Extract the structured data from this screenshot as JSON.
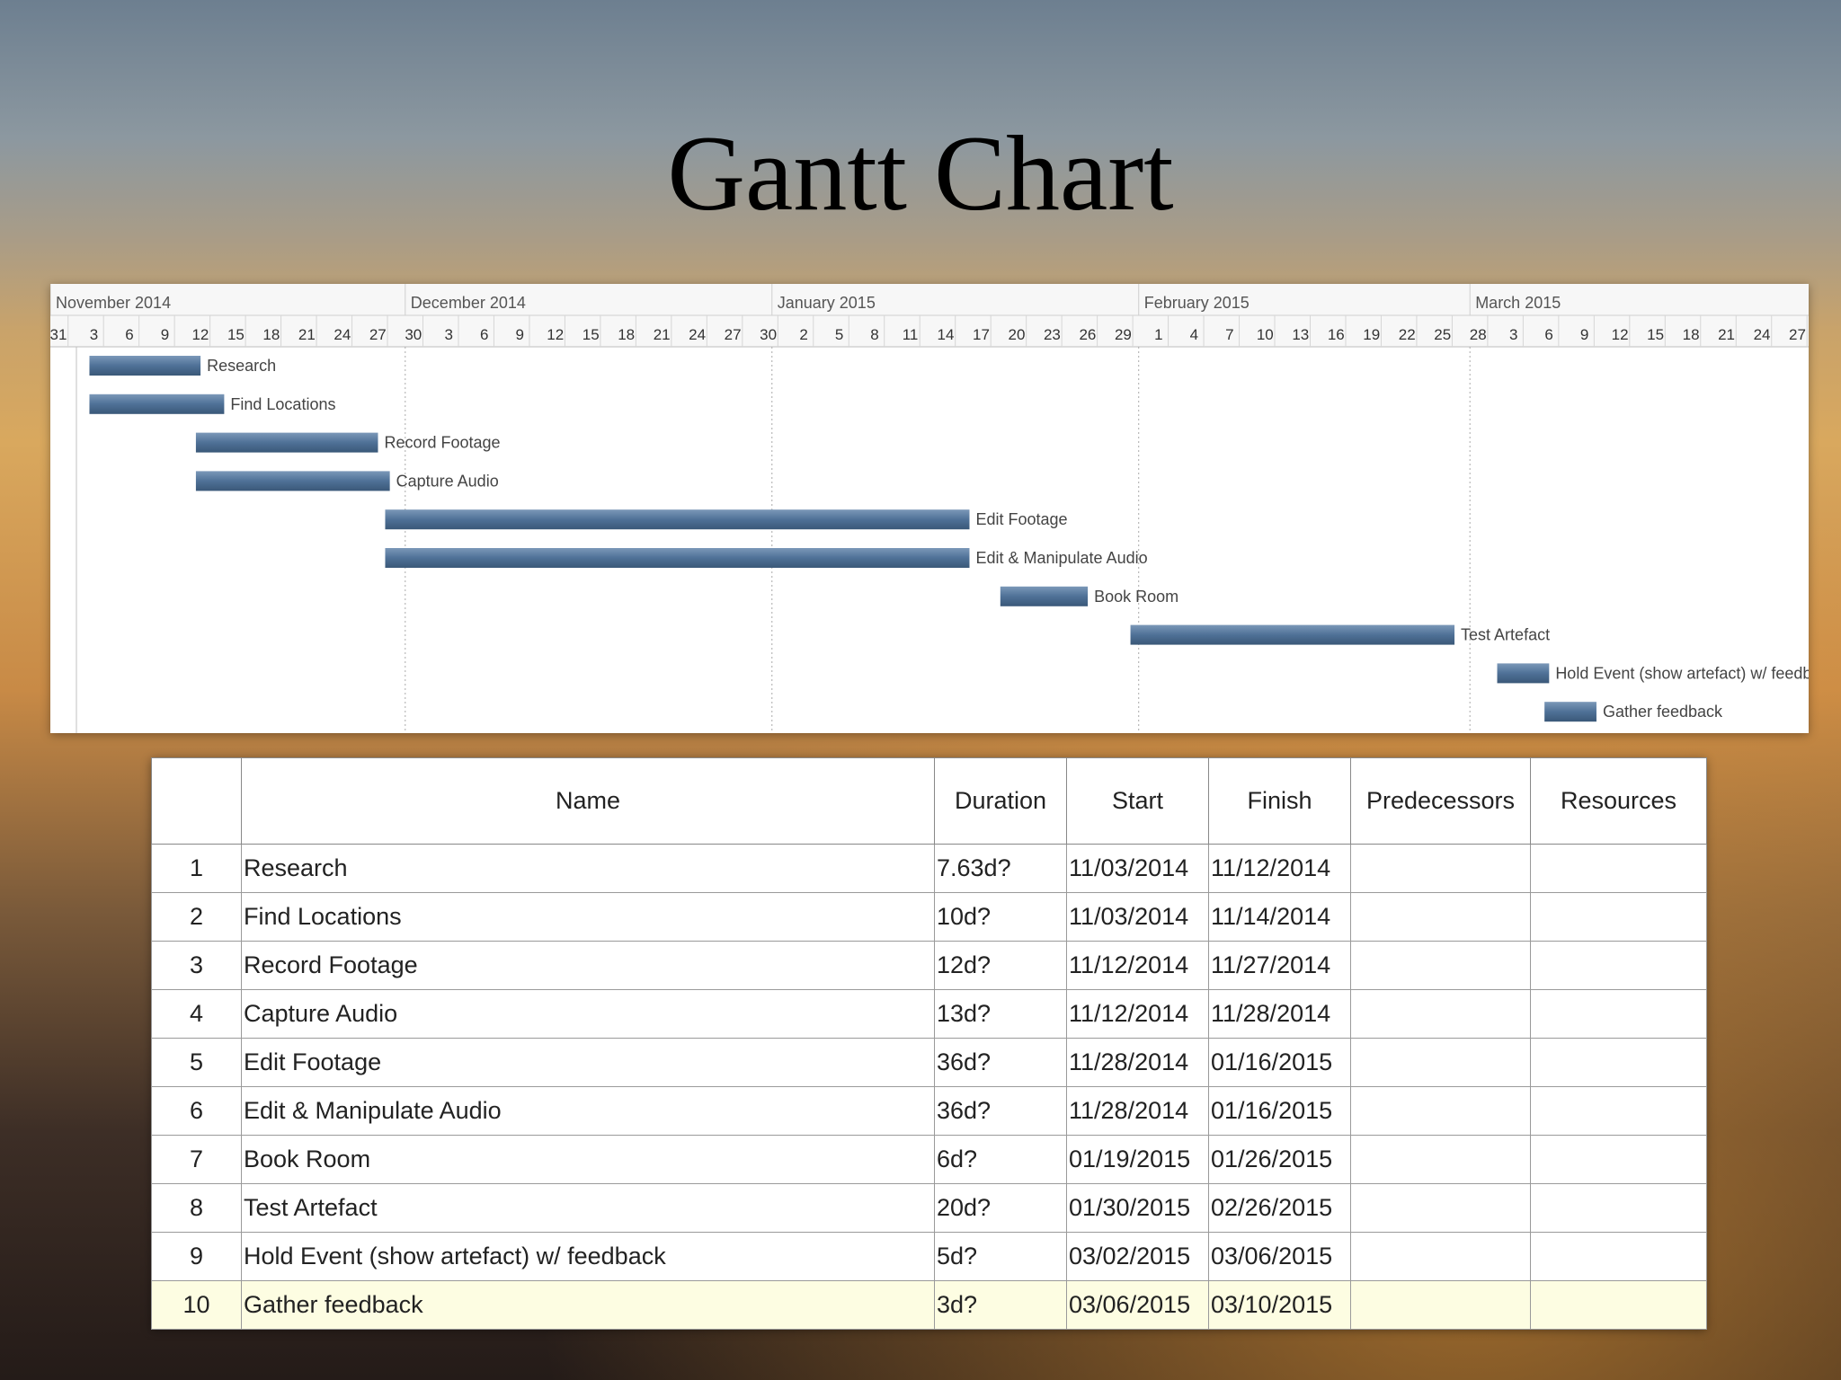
{
  "slide": {
    "title": "Gantt Chart"
  },
  "gantt": {
    "months": [
      {
        "label": "November 2014",
        "start": "2014-10-31"
      },
      {
        "label": "December 2014",
        "start": "2014-11-30"
      },
      {
        "label": "January 2015",
        "start": "2014-12-31"
      },
      {
        "label": "February 2015",
        "start": "2015-01-31"
      },
      {
        "label": "March 2015",
        "start": "2015-02-28"
      }
    ],
    "day_ticks": [
      "31",
      "3",
      "6",
      "9",
      "12",
      "15",
      "18",
      "21",
      "24",
      "27",
      "30",
      "3",
      "6",
      "9",
      "12",
      "15",
      "18",
      "21",
      "24",
      "27",
      "30",
      "2",
      "5",
      "8",
      "11",
      "14",
      "17",
      "20",
      "23",
      "26",
      "29",
      "1",
      "4",
      "7",
      "10",
      "13",
      "16",
      "19",
      "22",
      "25",
      "28",
      "3",
      "6",
      "9",
      "12",
      "15",
      "18",
      "21",
      "24",
      "27"
    ],
    "bar_color": "#4f7197"
  },
  "table": {
    "headers": [
      "",
      "Name",
      "Duration",
      "Start",
      "Finish",
      "Predecessors",
      "Resources"
    ],
    "rows": [
      {
        "id": "1",
        "name": "Research",
        "duration": "7.63d?",
        "start": "11/03/2014",
        "finish": "11/12/2014",
        "predecessors": "",
        "resources": ""
      },
      {
        "id": "2",
        "name": "Find Locations",
        "duration": "10d?",
        "start": "11/03/2014",
        "finish": "11/14/2014",
        "predecessors": "",
        "resources": ""
      },
      {
        "id": "3",
        "name": "Record Footage",
        "duration": "12d?",
        "start": "11/12/2014",
        "finish": "11/27/2014",
        "predecessors": "",
        "resources": ""
      },
      {
        "id": "4",
        "name": "Capture Audio",
        "duration": "13d?",
        "start": "11/12/2014",
        "finish": "11/28/2014",
        "predecessors": "",
        "resources": ""
      },
      {
        "id": "5",
        "name": "Edit Footage",
        "duration": "36d?",
        "start": "11/28/2014",
        "finish": "01/16/2015",
        "predecessors": "",
        "resources": ""
      },
      {
        "id": "6",
        "name": "Edit & Manipulate Audio",
        "duration": "36d?",
        "start": "11/28/2014",
        "finish": "01/16/2015",
        "predecessors": "",
        "resources": ""
      },
      {
        "id": "7",
        "name": "Book Room",
        "duration": "6d?",
        "start": "01/19/2015",
        "finish": "01/26/2015",
        "predecessors": "",
        "resources": ""
      },
      {
        "id": "8",
        "name": "Test Artefact",
        "duration": "20d?",
        "start": "01/30/2015",
        "finish": "02/26/2015",
        "predecessors": "",
        "resources": ""
      },
      {
        "id": "9",
        "name": "Hold Event (show artefact) w/ feedback",
        "duration": "5d?",
        "start": "03/02/2015",
        "finish": "03/06/2015",
        "predecessors": "",
        "resources": ""
      },
      {
        "id": "10",
        "name": "Gather feedback",
        "duration": "3d?",
        "start": "03/06/2015",
        "finish": "03/10/2015",
        "predecessors": "",
        "resources": ""
      }
    ],
    "selected_row": "10"
  }
}
